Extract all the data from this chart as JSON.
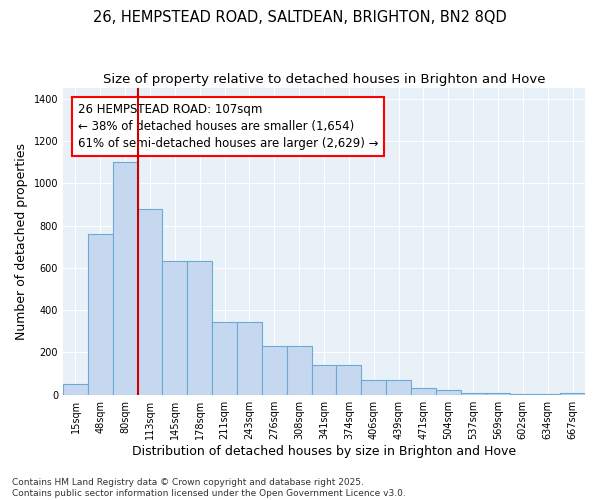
{
  "title_line1": "26, HEMPSTEAD ROAD, SALTDEAN, BRIGHTON, BN2 8QD",
  "title_line2": "Size of property relative to detached houses in Brighton and Hove",
  "xlabel": "Distribution of detached houses by size in Brighton and Hove",
  "ylabel": "Number of detached properties",
  "categories": [
    "15sqm",
    "48sqm",
    "80sqm",
    "113sqm",
    "145sqm",
    "178sqm",
    "211sqm",
    "243sqm",
    "276sqm",
    "308sqm",
    "341sqm",
    "374sqm",
    "406sqm",
    "439sqm",
    "471sqm",
    "504sqm",
    "537sqm",
    "569sqm",
    "602sqm",
    "634sqm",
    "667sqm"
  ],
  "bar_values": [
    50,
    760,
    1100,
    880,
    630,
    630,
    345,
    345,
    230,
    230,
    140,
    140,
    70,
    70,
    30,
    20,
    10,
    10,
    5,
    5,
    10
  ],
  "bar_color": "#c5d8f0",
  "bar_edge_color": "#6aaad4",
  "annotation_text_line1": "26 HEMPSTEAD ROAD: 107sqm",
  "annotation_text_line2": "← 38% of detached houses are smaller (1,654)",
  "annotation_text_line3": "61% of semi-detached houses are larger (2,629) →",
  "vline_color": "#cc0000",
  "fig_background": "#ffffff",
  "plot_background": "#e8f0f8",
  "grid_color": "#ffffff",
  "footer_line1": "Contains HM Land Registry data © Crown copyright and database right 2025.",
  "footer_line2": "Contains public sector information licensed under the Open Government Licence v3.0.",
  "ylim": [
    0,
    1450
  ],
  "yticks": [
    0,
    200,
    400,
    600,
    800,
    1000,
    1200,
    1400
  ],
  "title_fontsize": 10.5,
  "subtitle_fontsize": 9.5,
  "axis_label_fontsize": 9,
  "tick_fontsize": 7,
  "annotation_fontsize": 8.5,
  "footer_fontsize": 6.5
}
